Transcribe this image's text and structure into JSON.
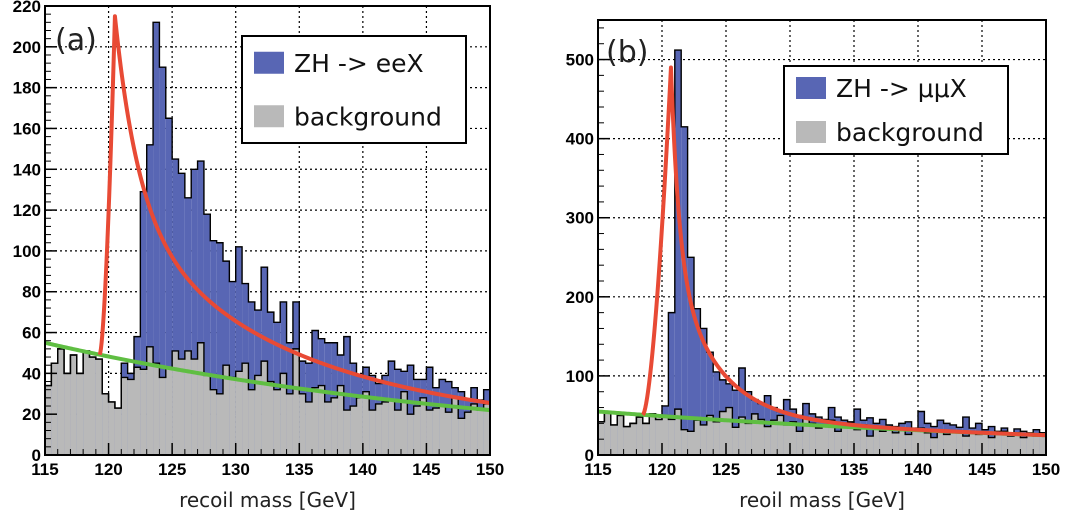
{
  "chart_data": [
    {
      "type": "histogram",
      "panel_label": "(a)",
      "xlabel": "recoil mass [GeV]",
      "ylabel": "",
      "xlim": [
        115,
        150
      ],
      "ylim": [
        0,
        220
      ],
      "xticks": [
        115,
        120,
        125,
        130,
        135,
        140,
        145,
        150
      ],
      "yticks": [
        0,
        20,
        40,
        60,
        80,
        100,
        120,
        140,
        160,
        180,
        200,
        220
      ],
      "grid": true,
      "legend_position": "top-right",
      "series": [
        {
          "name": "ZH -> eeX",
          "color": "#5866b4"
        },
        {
          "name": "background",
          "color": "#b9b9b9"
        }
      ],
      "bin_edges_range": [
        115,
        150
      ],
      "bin_width": 0.5,
      "total_counts": [
        34,
        45,
        52,
        40,
        49,
        40,
        51,
        48,
        47,
        30,
        26,
        23,
        45,
        40,
        58,
        129,
        152,
        212,
        190,
        165,
        145,
        138,
        126,
        140,
        144,
        118,
        105,
        104,
        95,
        85,
        102,
        84,
        75,
        71,
        92,
        70,
        65,
        75,
        55,
        75,
        46,
        45,
        61,
        57,
        55,
        55,
        49,
        58,
        45,
        39,
        43,
        39,
        35,
        39,
        46,
        42,
        41,
        44,
        37,
        37,
        43,
        33,
        37,
        36,
        33,
        31,
        27,
        33,
        27,
        32
      ],
      "background_counts": [
        34,
        45,
        52,
        40,
        49,
        40,
        51,
        48,
        47,
        30,
        26,
        23,
        38,
        37,
        43,
        42,
        53,
        45,
        38,
        43,
        51,
        47,
        51,
        47,
        55,
        39,
        32,
        30,
        44,
        38,
        41,
        45,
        32,
        39,
        46,
        36,
        32,
        40,
        30,
        52,
        30,
        26,
        33,
        34,
        26,
        28,
        34,
        22,
        24,
        28,
        31,
        22,
        25,
        26,
        27,
        22,
        31,
        20,
        24,
        28,
        22,
        23,
        24,
        21,
        28,
        18,
        21,
        25,
        22,
        25
      ],
      "fits": [
        {
          "name": "signal+background fit",
          "color": "#e84a35",
          "x_start": 119.3,
          "peak_x": 120.5,
          "peak_y": 215
        },
        {
          "name": "background fit",
          "color": "#5fbe42",
          "y_at_115": 55,
          "y_at_150": 22
        }
      ]
    },
    {
      "type": "histogram",
      "panel_label": "(b)",
      "xlabel": "reoil mass [GeV]",
      "ylabel": "",
      "xlim": [
        115,
        150
      ],
      "ylim": [
        0,
        550
      ],
      "xticks": [
        115,
        120,
        125,
        130,
        135,
        140,
        145,
        150
      ],
      "yticks": [
        0,
        100,
        200,
        300,
        400,
        500
      ],
      "grid": true,
      "legend_position": "top-right",
      "series": [
        {
          "name": "ZH -> μμX",
          "color": "#5866b4"
        },
        {
          "name": "background",
          "color": "#b9b9b9"
        }
      ],
      "bin_edges_range": [
        115,
        150
      ],
      "bin_width": 0.5,
      "total_counts": [
        42,
        55,
        38,
        50,
        36,
        40,
        48,
        40,
        52,
        45,
        62,
        180,
        512,
        415,
        250,
        185,
        160,
        130,
        105,
        95,
        90,
        82,
        110,
        80,
        70,
        65,
        75,
        60,
        55,
        70,
        58,
        50,
        65,
        52,
        48,
        45,
        60,
        48,
        44,
        42,
        58,
        44,
        47,
        40,
        45,
        38,
        36,
        40,
        42,
        34,
        55,
        40,
        36,
        44,
        40,
        38,
        35,
        48,
        34,
        40,
        32,
        36,
        30,
        34,
        28,
        33,
        30,
        28,
        32,
        28
      ],
      "background_counts": [
        42,
        55,
        38,
        50,
        36,
        40,
        48,
        40,
        52,
        45,
        50,
        45,
        58,
        32,
        30,
        44,
        38,
        50,
        42,
        55,
        60,
        35,
        48,
        40,
        52,
        45,
        36,
        44,
        50,
        38,
        42,
        30,
        46,
        40,
        34,
        38,
        44,
        30,
        36,
        40,
        32,
        38,
        24,
        34,
        30,
        36,
        28,
        32,
        26,
        30,
        34,
        28,
        22,
        32,
        26,
        30,
        28,
        24,
        30,
        26,
        28,
        22,
        26,
        30,
        24,
        28,
        22,
        26,
        24,
        28
      ],
      "fits": [
        {
          "name": "signal+background fit",
          "color": "#e84a35",
          "x_start": 118.5,
          "peak_x": 120.7,
          "peak_y": 490
        },
        {
          "name": "background fit",
          "color": "#5fbe42",
          "y_at_115": 55,
          "y_at_150": 25
        }
      ]
    }
  ]
}
